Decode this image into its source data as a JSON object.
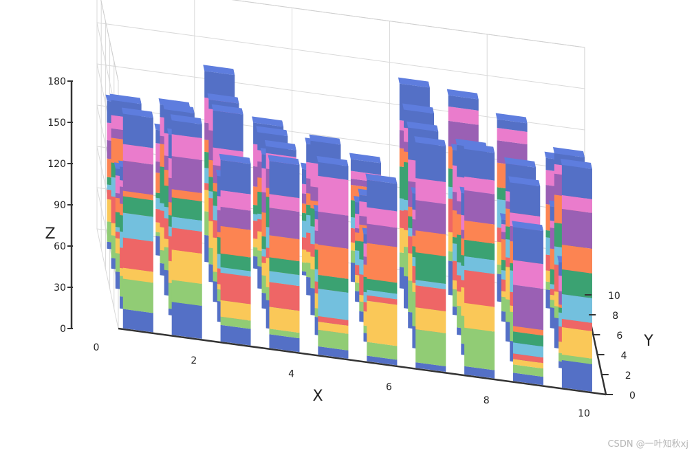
{
  "chart_data": {
    "type": "bar3d-stacked",
    "title": "",
    "xlabel": "X",
    "ylabel": "Y",
    "zlabel": "Z",
    "xlim": [
      0,
      10
    ],
    "ylim": [
      0,
      10
    ],
    "zlim": [
      0,
      180
    ],
    "x_ticks": [
      "0",
      "2",
      "4",
      "6",
      "8",
      "10"
    ],
    "y_ticks": [
      "0",
      "2",
      "4",
      "6",
      "8",
      "10"
    ],
    "z_ticks": [
      "0",
      "30",
      "60",
      "90",
      "120",
      "150",
      "180"
    ],
    "grid": true,
    "layers_colors": [
      "#5470c6",
      "#91cc75",
      "#fac858",
      "#ee6666",
      "#73c0de",
      "#3ba272",
      "#fc8452",
      "#9a60b4",
      "#ea7ccc",
      "#5470c6"
    ],
    "front_row_stacks": [
      {
        "x": 0,
        "segments": [
          14,
          22,
          8,
          22,
          18,
          12,
          4,
          22,
          12,
          22
        ]
      },
      {
        "x": 1,
        "segments": [
          24,
          16,
          22,
          16,
          8,
          14,
          6,
          24,
          16,
          10
        ]
      },
      {
        "x": 2,
        "segments": [
          12,
          6,
          12,
          20,
          4,
          10,
          20,
          14,
          12,
          22
        ]
      },
      {
        "x": 3,
        "segments": [
          10,
          4,
          16,
          18,
          8,
          10,
          16,
          20,
          10,
          24
        ]
      },
      {
        "x": 4,
        "segments": [
          6,
          12,
          6,
          4,
          20,
          10,
          22,
          24,
          26,
          10
        ]
      },
      {
        "x": 5,
        "segments": [
          4,
          10,
          30,
          4,
          4,
          8,
          26,
          14,
          12,
          20
        ]
      },
      {
        "x": 6,
        "segments": [
          4,
          24,
          16,
          16,
          4,
          20,
          16,
          22,
          16,
          26
        ]
      },
      {
        "x": 7,
        "segments": [
          6,
          28,
          18,
          24,
          10,
          12,
          14,
          22,
          10,
          20
        ]
      },
      {
        "x": 8,
        "segments": [
          6,
          6,
          4,
          4,
          8,
          8,
          4,
          30,
          18,
          24
        ]
      },
      {
        "x": 9,
        "segments": [
          20,
          4,
          20,
          6,
          18,
          18,
          18,
          26,
          10,
          22
        ]
      }
    ]
  },
  "watermark": "CSDN @一叶知秋xj"
}
